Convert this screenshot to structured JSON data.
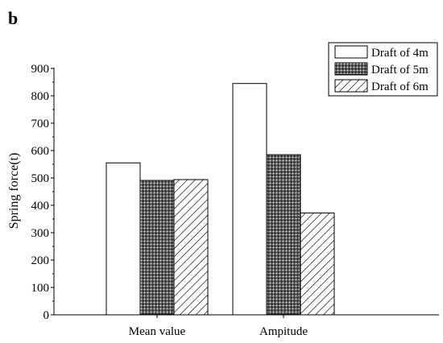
{
  "panel_label": "b",
  "chart_data": {
    "type": "bar",
    "title": "",
    "xlabel": "",
    "ylabel": "Spring force(t)",
    "ylim": [
      0,
      900
    ],
    "yticks": [
      0,
      100,
      200,
      300,
      400,
      500,
      600,
      700,
      800,
      900
    ],
    "categories": [
      "Mean value",
      "Ampitude"
    ],
    "series": [
      {
        "name": "Draft of 4m",
        "values": [
          555,
          845
        ]
      },
      {
        "name": "Draft of 5m",
        "values": [
          491,
          585
        ]
      },
      {
        "name": "Draft of 6m",
        "values": [
          494,
          372
        ]
      }
    ],
    "grid": false,
    "legend": "top-right"
  }
}
